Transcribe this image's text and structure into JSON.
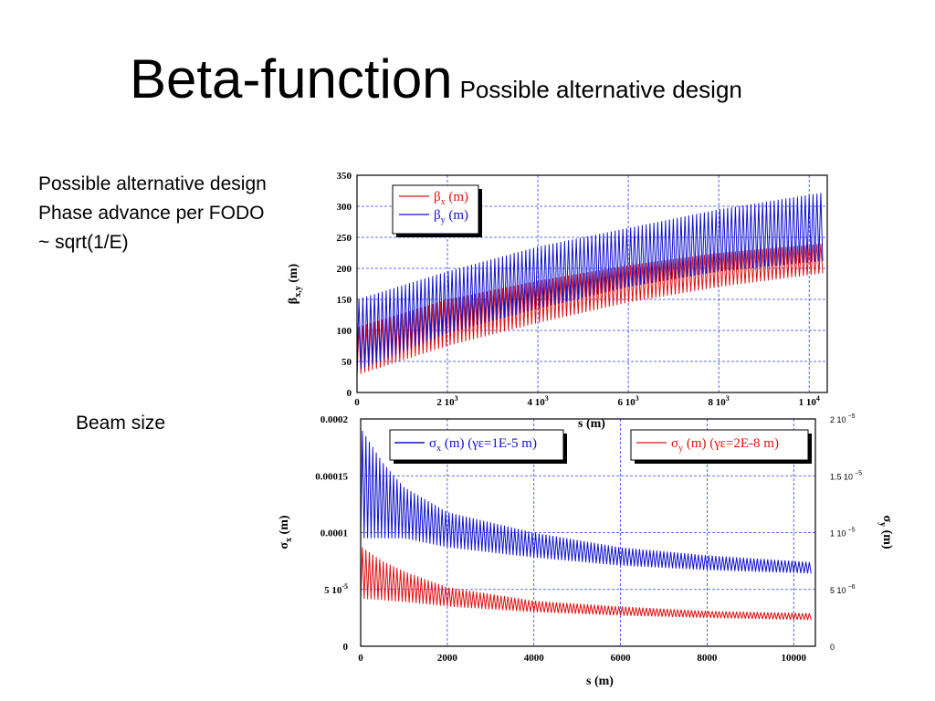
{
  "slide": {
    "title": "Beta-function",
    "subtitle": "Possible alternative design",
    "side_text": [
      "Possible alternative design",
      "Phase advance per FODO",
      "~ sqrt(1/E)"
    ],
    "beam_size_label": "Beam size"
  },
  "colors": {
    "red": "#e01010",
    "blue": "#1010d0",
    "grid": "#2a40ff"
  },
  "chart_data": [
    {
      "type": "line",
      "xlabel": "s (m)",
      "ylabel": "βx,y (m)",
      "xlim": [
        0,
        10400
      ],
      "ylim": [
        0,
        350
      ],
      "x_ticks": [
        {
          "v": 0,
          "m": "0",
          "e": ""
        },
        {
          "v": 2000,
          "m": "2 10",
          "e": "3"
        },
        {
          "v": 4000,
          "m": "4 10",
          "e": "3"
        },
        {
          "v": 6000,
          "m": "6 10",
          "e": "3"
        },
        {
          "v": 8000,
          "m": "8 10",
          "e": "3"
        },
        {
          "v": 10000,
          "m": "1 10",
          "e": "4"
        }
      ],
      "y_ticks": [
        {
          "v": 0,
          "m": "0",
          "e": ""
        },
        {
          "v": 50,
          "m": "50",
          "e": ""
        },
        {
          "v": 100,
          "m": "100",
          "e": ""
        },
        {
          "v": 150,
          "m": "150",
          "e": ""
        },
        {
          "v": 200,
          "m": "200",
          "e": ""
        },
        {
          "v": 250,
          "m": "250",
          "e": ""
        },
        {
          "v": 300,
          "m": "300",
          "e": ""
        },
        {
          "v": 350,
          "m": "350",
          "e": ""
        }
      ],
      "grid": true,
      "legend": "top-left",
      "series": [
        {
          "name": "βx (m)",
          "color": "red",
          "x_range": [
            0,
            10300
          ],
          "periods": 120,
          "min_points": [
            [
              0,
              28
            ],
            [
              2000,
              75
            ],
            [
              4000,
              112
            ],
            [
              6000,
              145
            ],
            [
              8000,
              170
            ],
            [
              10300,
              192
            ]
          ],
          "max_points": [
            [
              0,
              105
            ],
            [
              2000,
              150
            ],
            [
              4000,
              180
            ],
            [
              6000,
              205
            ],
            [
              8000,
              225
            ],
            [
              10300,
              240
            ]
          ]
        },
        {
          "name": "βy (m)",
          "color": "blue",
          "x_range": [
            0,
            10300
          ],
          "periods": 120,
          "min_points": [
            [
              0,
              35
            ],
            [
              2000,
              95
            ],
            [
              4000,
              135
            ],
            [
              6000,
              170
            ],
            [
              8000,
              195
            ],
            [
              10300,
              212
            ]
          ],
          "max_points": [
            [
              0,
              150
            ],
            [
              2000,
              195
            ],
            [
              4000,
              235
            ],
            [
              6000,
              265
            ],
            [
              8000,
              295
            ],
            [
              10300,
              322
            ]
          ]
        }
      ]
    },
    {
      "type": "line",
      "xlabel": "s (m)",
      "ylabel": "σx (m)",
      "y2label": "σy (m)",
      "xlim": [
        0,
        10500
      ],
      "ylim": [
        0,
        0.0002
      ],
      "y2lim": [
        0,
        2e-05
      ],
      "x_ticks": [
        {
          "v": 0,
          "m": "0",
          "e": ""
        },
        {
          "v": 2000,
          "m": "2000",
          "e": ""
        },
        {
          "v": 4000,
          "m": "4000",
          "e": ""
        },
        {
          "v": 6000,
          "m": "6000",
          "e": ""
        },
        {
          "v": 8000,
          "m": "8000",
          "e": ""
        },
        {
          "v": 10000,
          "m": "10000",
          "e": ""
        }
      ],
      "y_ticks": [
        {
          "v": 0,
          "m": "0",
          "e": ""
        },
        {
          "v": 5e-05,
          "m": "5 10",
          "e": "-5"
        },
        {
          "v": 0.0001,
          "m": "0.0001",
          "e": ""
        },
        {
          "v": 0.00015,
          "m": "0.00015",
          "e": ""
        },
        {
          "v": 0.0002,
          "m": "0.0002",
          "e": ""
        }
      ],
      "y2_ticks": [
        {
          "v": 0,
          "m": "0",
          "e": ""
        },
        {
          "v": 5e-06,
          "m": "5  10",
          "e": "−6"
        },
        {
          "v": 1e-05,
          "m": "1  10",
          "e": "−5"
        },
        {
          "v": 1.5e-05,
          "m": "1.5  10",
          "e": "−5"
        },
        {
          "v": 2e-05,
          "m": "2  10",
          "e": "−5"
        }
      ],
      "grid": true,
      "legend": "top-left, top-right",
      "series": [
        {
          "name": "σx (m) (γε=1E-5 m)",
          "axis": "left",
          "color": "blue",
          "x_range": [
            0,
            10400
          ],
          "periods": 130,
          "min_points": [
            [
              0,
              9.5e-05
            ],
            [
              1000,
              9.5e-05
            ],
            [
              2000,
              8.7e-05
            ],
            [
              4000,
              7.8e-05
            ],
            [
              6000,
              7.1e-05
            ],
            [
              8000,
              6.7e-05
            ],
            [
              10400,
              6.4e-05
            ]
          ],
          "max_points": [
            [
              0,
              0.000192
            ],
            [
              500,
              0.000162
            ],
            [
              1000,
              0.00014
            ],
            [
              2000,
              0.000118
            ],
            [
              4000,
              0.0001
            ],
            [
              6000,
              8.7e-05
            ],
            [
              8000,
              8e-05
            ],
            [
              10400,
              7.4e-05
            ]
          ]
        },
        {
          "name": "σy (m) (γε=2E-8 m)",
          "axis": "right",
          "color": "red",
          "x_range": [
            0,
            10400
          ],
          "periods": 130,
          "min_points": [
            [
              0,
              4.2e-06
            ],
            [
              1000,
              3.9e-06
            ],
            [
              2000,
              3.5e-06
            ],
            [
              4000,
              3e-06
            ],
            [
              6000,
              2.7e-06
            ],
            [
              8000,
              2.5e-06
            ],
            [
              10400,
              2.3e-06
            ]
          ],
          "max_points": [
            [
              0,
              8.8e-06
            ],
            [
              500,
              7.5e-06
            ],
            [
              1000,
              6.6e-06
            ],
            [
              2000,
              5.2e-06
            ],
            [
              4000,
              4e-06
            ],
            [
              6000,
              3.5e-06
            ],
            [
              8000,
              3.1e-06
            ],
            [
              10400,
              2.9e-06
            ]
          ]
        }
      ]
    }
  ]
}
